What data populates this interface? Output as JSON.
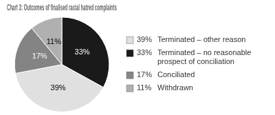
{
  "chart_data": {
    "type": "pie",
    "title": "Chart 3: Outcomes of finalised racial hatred complaints",
    "categories": [
      "Terminated – no reasonable\nprospect of conciliation",
      "Terminated – other reason",
      "Conciliated",
      "Withdrawn"
    ],
    "values": [
      33,
      39,
      17,
      11
    ],
    "value_labels": [
      "33%",
      "39%",
      "17%",
      "11%"
    ],
    "colors": [
      "#1a1a1a",
      "#e0e0e0",
      "#848484",
      "#b0b0b0"
    ],
    "data_labels": true,
    "legend": "right"
  }
}
